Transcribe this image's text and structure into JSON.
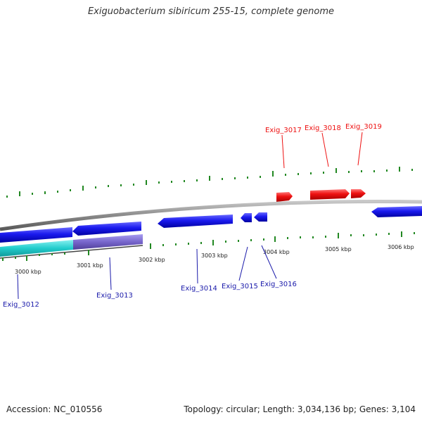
{
  "title": "Exiguobacterium sibiricum 255-15, complete genome",
  "footer": {
    "accession": "Accession: NC_010556",
    "stats": "Topology: circular; Length: 3,034,136 bp; Genes: 3,104"
  },
  "colors": {
    "forward_gene": "#ee1111",
    "reverse_gene": "#1a1aee",
    "backbone": "#888888",
    "gc_skew": "#228822",
    "segment_a": "#22cccc",
    "segment_b": "#7766cc",
    "label_reverse": "#1a1aaa"
  },
  "scale_ticks": [
    "3000 kbp",
    "3001 kbp",
    "3002 kbp",
    "3003 kbp",
    "3004 kbp",
    "3005 kbp",
    "3006 kbp"
  ],
  "genes": {
    "forward": [
      {
        "name": "Exig_3017"
      },
      {
        "name": "Exig_3018"
      },
      {
        "name": "Exig_3019"
      }
    ],
    "reverse": [
      {
        "name": "Exig_3012"
      },
      {
        "name": "Exig_3013"
      },
      {
        "name": "Exig_3014"
      },
      {
        "name": "Exig_3015"
      },
      {
        "name": "Exig_3016"
      }
    ]
  }
}
